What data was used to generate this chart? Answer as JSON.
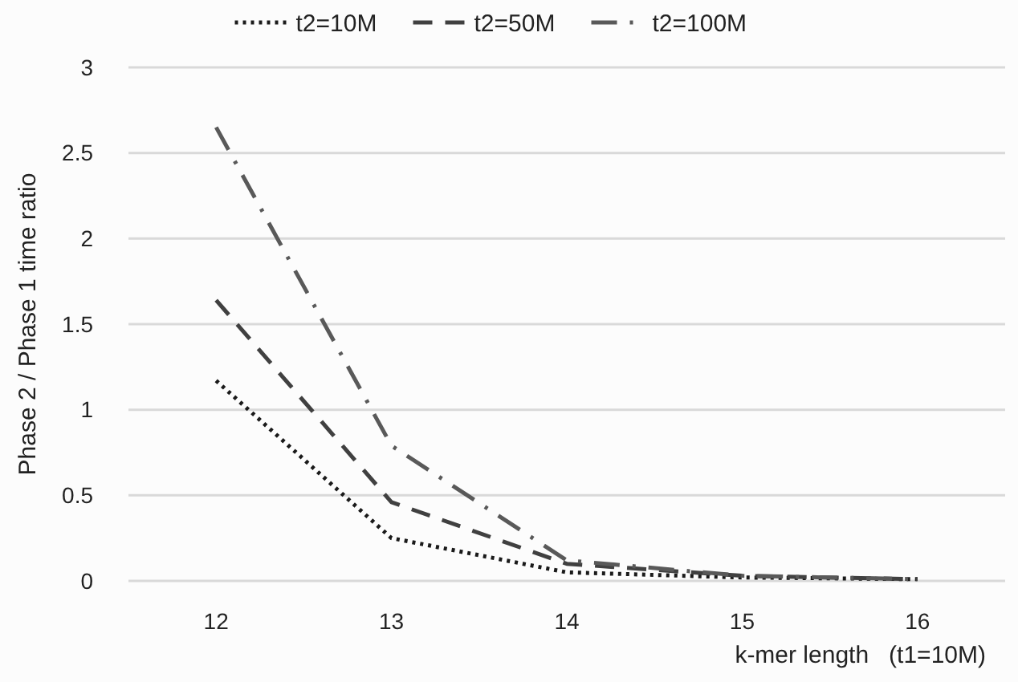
{
  "chart_data": {
    "type": "line",
    "ylabel": "Phase 2 / Phase 1 time ratio",
    "xlabel": "k-mer length   (t1=10M)",
    "categories": [
      "12",
      "13",
      "14",
      "15",
      "16"
    ],
    "series": [
      {
        "name": "t2=10M",
        "color": "#1a1a1a",
        "line_style": "dotted",
        "values": [
          1.17,
          0.25,
          0.05,
          0.02,
          0.01
        ]
      },
      {
        "name": "t2=50M",
        "color": "#404040",
        "line_style": "dashed",
        "values": [
          1.64,
          0.46,
          0.1,
          0.03,
          0.01
        ]
      },
      {
        "name": "t2=100M",
        "color": "#595959",
        "line_style": "dashdot",
        "values": [
          2.65,
          0.79,
          0.12,
          0.03,
          0.01
        ]
      }
    ],
    "ylim": [
      0,
      3
    ],
    "yticks": [
      0,
      0.5,
      1,
      1.5,
      2,
      2.5,
      3
    ],
    "grid": "y",
    "legend": "top",
    "marker": "none"
  }
}
